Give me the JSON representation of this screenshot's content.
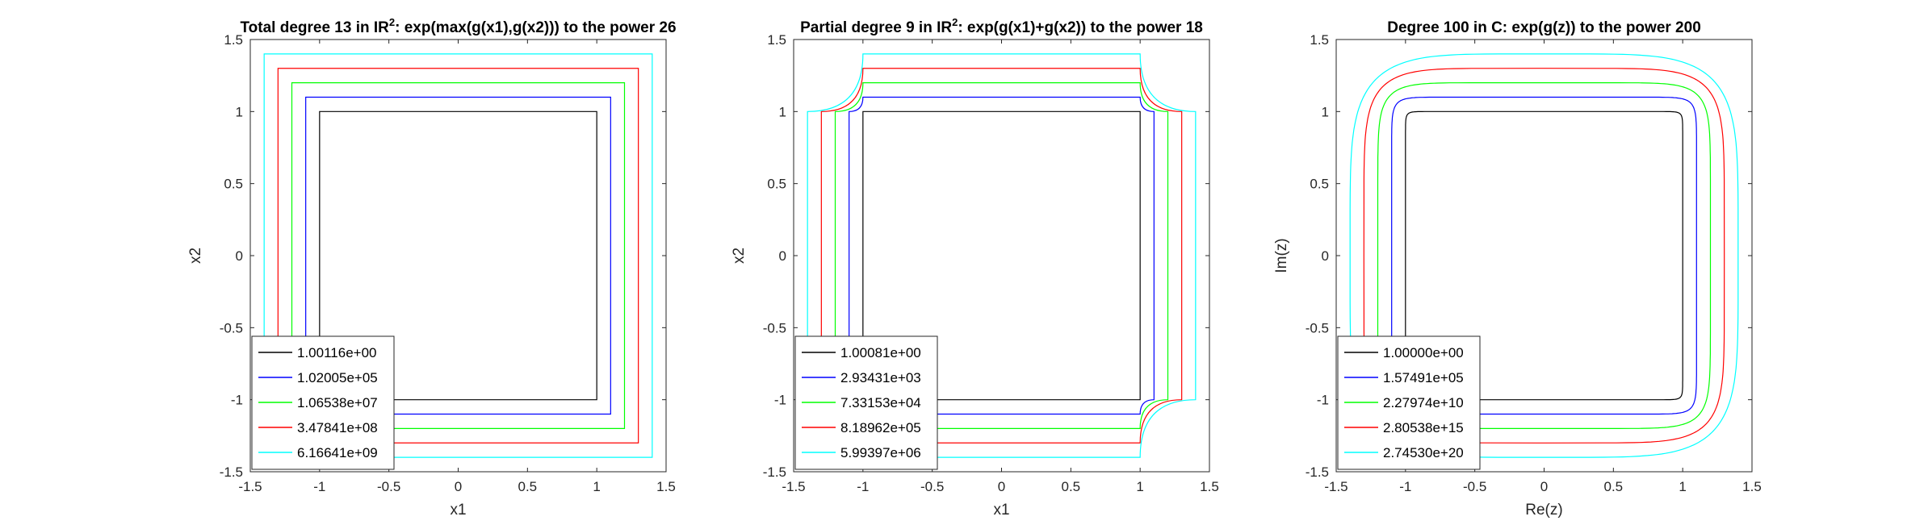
{
  "chart_data": [
    {
      "type": "line",
      "title_pre": "Total degree 13 in IR",
      "title_sup": "2",
      "title_post": ": exp(max(g(x1),g(x2))) to the power 26",
      "xlabel": "x1",
      "ylabel": "x2",
      "xlim": [
        -1.5,
        1.5
      ],
      "ylim": [
        -1.5,
        1.5
      ],
      "xticks": [
        "-1.5",
        "-1",
        "-0.5",
        "0",
        "0.5",
        "1",
        "1.5"
      ],
      "yticks": [
        "-1.5",
        "-1",
        "-0.5",
        "0",
        "0.5",
        "1",
        "1.5"
      ],
      "legend_position": "bottom-left",
      "shape": "square",
      "series": [
        {
          "name": "1.00116e+00",
          "color": "#000000",
          "half_width": 1.0
        },
        {
          "name": "1.02005e+05",
          "color": "#0000ff",
          "half_width": 1.1
        },
        {
          "name": "1.06538e+07",
          "color": "#00ff00",
          "half_width": 1.2
        },
        {
          "name": "3.47841e+08",
          "color": "#ff0000",
          "half_width": 1.3
        },
        {
          "name": "6.16641e+09",
          "color": "#00ffff",
          "half_width": 1.4
        }
      ]
    },
    {
      "type": "line",
      "title_pre": "Partial degree 9 in IR",
      "title_sup": "2",
      "title_post": ": exp(g(x1)+g(x2)) to the power 18",
      "xlabel": "x1",
      "ylabel": "x2",
      "xlim": [
        -1.5,
        1.5
      ],
      "ylim": [
        -1.5,
        1.5
      ],
      "xticks": [
        "-1.5",
        "-1",
        "-0.5",
        "0",
        "0.5",
        "1",
        "1.5"
      ],
      "yticks": [
        "-1.5",
        "-1",
        "-0.5",
        "0",
        "0.5",
        "1",
        "1.5"
      ],
      "legend_position": "bottom-left",
      "shape": "cross",
      "series": [
        {
          "name": "1.00081e+00",
          "color": "#000000",
          "half_width": 1.0
        },
        {
          "name": "2.93431e+03",
          "color": "#0000ff",
          "half_width": 1.1
        },
        {
          "name": "7.33153e+04",
          "color": "#00ff00",
          "half_width": 1.2
        },
        {
          "name": "8.18962e+05",
          "color": "#ff0000",
          "half_width": 1.3
        },
        {
          "name": "5.99397e+06",
          "color": "#00ffff",
          "half_width": 1.4
        }
      ]
    },
    {
      "type": "line",
      "title_pre": "Degree 100 in C: exp(g(z)) to the power 200",
      "title_sup": "",
      "title_post": "",
      "xlabel": "Re(z)",
      "ylabel": "Im(z)",
      "xlim": [
        -1.5,
        1.5
      ],
      "ylim": [
        -1.5,
        1.5
      ],
      "xticks": [
        "-1.5",
        "-1",
        "-0.5",
        "0",
        "0.5",
        "1",
        "1.5"
      ],
      "yticks": [
        "-1.5",
        "-1",
        "-0.5",
        "0",
        "0.5",
        "1",
        "1.5"
      ],
      "legend_position": "bottom-left",
      "shape": "superellipse",
      "series": [
        {
          "name": "1.00000e+00",
          "color": "#000000",
          "half_width": 1.0
        },
        {
          "name": "1.57491e+05",
          "color": "#0000ff",
          "half_width": 1.1
        },
        {
          "name": "2.27974e+10",
          "color": "#00ff00",
          "half_width": 1.2
        },
        {
          "name": "2.80538e+15",
          "color": "#ff0000",
          "half_width": 1.3
        },
        {
          "name": "2.74530e+20",
          "color": "#00ffff",
          "half_width": 1.4
        }
      ]
    }
  ]
}
